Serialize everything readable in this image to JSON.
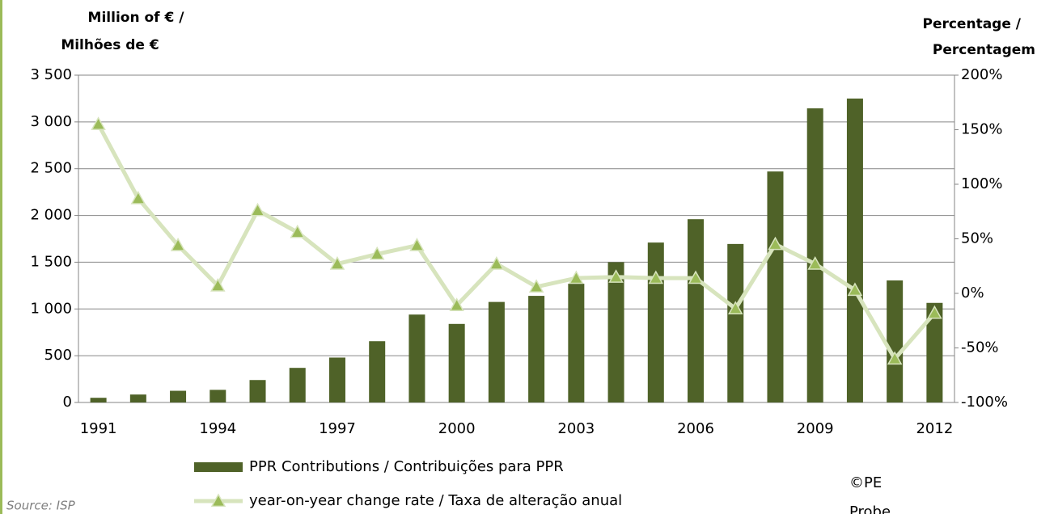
{
  "chart_data": {
    "type": "bar-line",
    "y_label": [
      "Million of € /",
      "Milhões de €"
    ],
    "y2_label": [
      "Percentage /",
      "Percentagem"
    ],
    "categories": [
      "1991",
      null,
      null,
      "1994",
      null,
      null,
      "1997",
      null,
      null,
      "2000",
      null,
      null,
      "2003",
      null,
      null,
      "2006",
      null,
      null,
      "2009",
      null,
      null,
      "2012"
    ],
    "series": [
      {
        "name": "PPR Contributions / Contribuições para PPR",
        "type": "bar",
        "color": "#4f6228",
        "values": [
          50,
          85,
          125,
          135,
          240,
          370,
          480,
          655,
          940,
          840,
          1075,
          1140,
          1270,
          1500,
          1710,
          1960,
          1695,
          2470,
          3145,
          3250,
          1305,
          1065
        ]
      },
      {
        "name": "year-on-year change rate / Taxa de alteração anual",
        "type": "line",
        "axis": "y2",
        "color": "#d7e4bd",
        "marker_color": "#9bbb59",
        "values": [
          155,
          87,
          44,
          7,
          76,
          56,
          27,
          36,
          44,
          -11,
          27,
          6,
          14,
          15,
          14,
          14,
          -14,
          45,
          27,
          3,
          -60,
          -18
        ]
      }
    ],
    "ylim": [
      0,
      3500
    ],
    "yticks": [
      0,
      500,
      {
        "value": 1000,
        "label": "1 000"
      },
      {
        "value": 1500,
        "label": "1 500"
      },
      {
        "value": 2000,
        "label": "2 000"
      },
      {
        "value": 2500,
        "label": "2 500"
      },
      {
        "value": 3000,
        "label": "3 000"
      },
      {
        "value": 3500,
        "label": "3 500"
      }
    ],
    "y2lim": [
      -100,
      200
    ],
    "y2ticks": [
      {
        "value": -100,
        "label": "-100%"
      },
      {
        "value": -50,
        "label": "-50%"
      },
      {
        "value": 0,
        "label": "0%"
      },
      {
        "value": 50,
        "label": "50%"
      },
      {
        "value": 100,
        "label": "100%"
      },
      {
        "value": 150,
        "label": "150%"
      },
      {
        "value": 200,
        "label": "200%"
      }
    ],
    "grid": true,
    "source": "Source: ISP",
    "credit": [
      "©PE",
      "Probe"
    ]
  }
}
